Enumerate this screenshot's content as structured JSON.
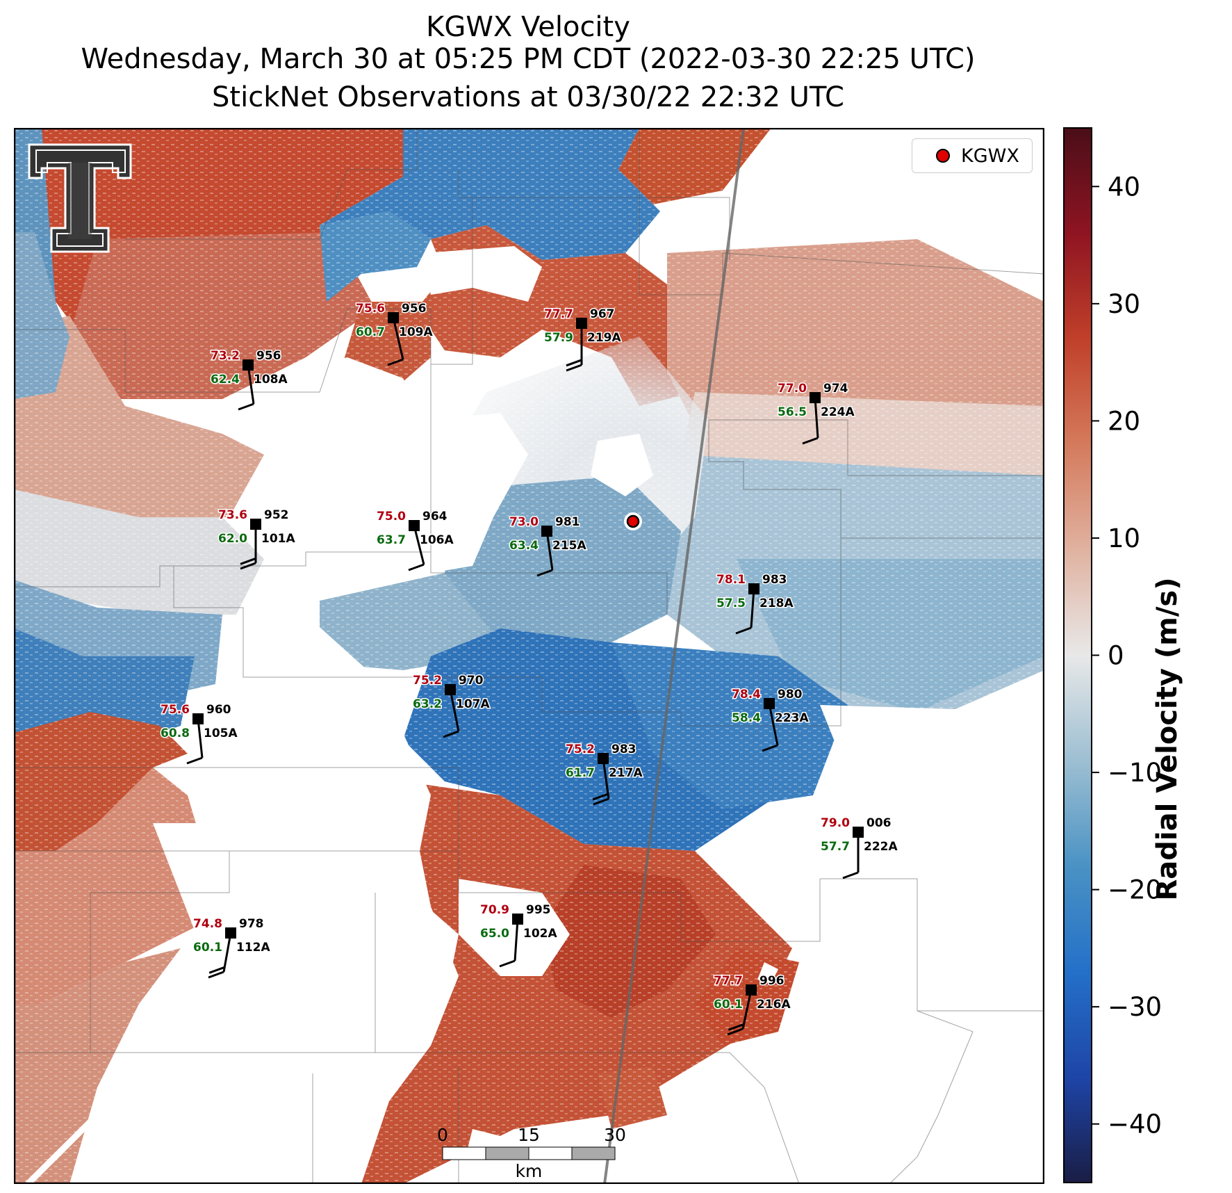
{
  "header": {
    "line1": "KGWX Velocity",
    "line2": "Wednesday, March 30 at 05:25 PM CDT (2022-03-30 22:25 UTC)",
    "line3": "StickNet Observations at 03/30/22 22:32 UTC"
  },
  "legend": {
    "label": "KGWX",
    "marker_color": "#e00000"
  },
  "colorbar": {
    "label": "Radial Velocity (m/s)",
    "range": [
      -45,
      45
    ],
    "ticks": [
      "40",
      "30",
      "20",
      "10",
      "0",
      "−10",
      "−20",
      "−30",
      "−40"
    ],
    "tick_values": [
      40,
      30,
      20,
      10,
      0,
      -10,
      -20,
      -30,
      -40
    ],
    "colors": [
      "#1a1d45",
      "#1e45a8",
      "#2470c8",
      "#4a92c4",
      "#9dbfd2",
      "#e8e8e8",
      "#e0b2a0",
      "#d47a5c",
      "#c0402a",
      "#8f1422",
      "#4a0e18"
    ]
  },
  "scalebar": {
    "ticks": [
      "0",
      "15",
      "30"
    ],
    "unit": "km"
  },
  "stations": [
    {
      "temp": "75.6",
      "dew": "60.7",
      "press": "956",
      "id": "109A"
    },
    {
      "temp": "77.7",
      "dew": "57.9",
      "press": "967",
      "id": "219A"
    },
    {
      "temp": "73.2",
      "dew": "62.4",
      "press": "956",
      "id": "108A"
    },
    {
      "temp": "77.0",
      "dew": "56.5",
      "press": "974",
      "id": "224A"
    },
    {
      "temp": "73.6",
      "dew": "62.0",
      "press": "952",
      "id": "101A"
    },
    {
      "temp": "75.0",
      "dew": "63.7",
      "press": "964",
      "id": "106A"
    },
    {
      "temp": "73.0",
      "dew": "63.4",
      "press": "981",
      "id": "215A"
    },
    {
      "temp": "78.1",
      "dew": "57.5",
      "press": "983",
      "id": "218A"
    },
    {
      "temp": "75.2",
      "dew": "63.2",
      "press": "970",
      "id": "107A"
    },
    {
      "temp": "78.4",
      "dew": "58.4",
      "press": "980",
      "id": "223A"
    },
    {
      "temp": "75.6",
      "dew": "60.8",
      "press": "960",
      "id": "105A"
    },
    {
      "temp": "75.2",
      "dew": "61.7",
      "press": "983",
      "id": "217A"
    },
    {
      "temp": "79.0",
      "dew": "57.7",
      "press": "006",
      "id": "222A"
    },
    {
      "temp": "70.9",
      "dew": "65.0",
      "press": "995",
      "id": "102A"
    },
    {
      "temp": "74.8",
      "dew": "60.1",
      "press": "978",
      "id": "112A"
    },
    {
      "temp": "77.7",
      "dew": "60.1",
      "press": "996",
      "id": "216A"
    }
  ]
}
